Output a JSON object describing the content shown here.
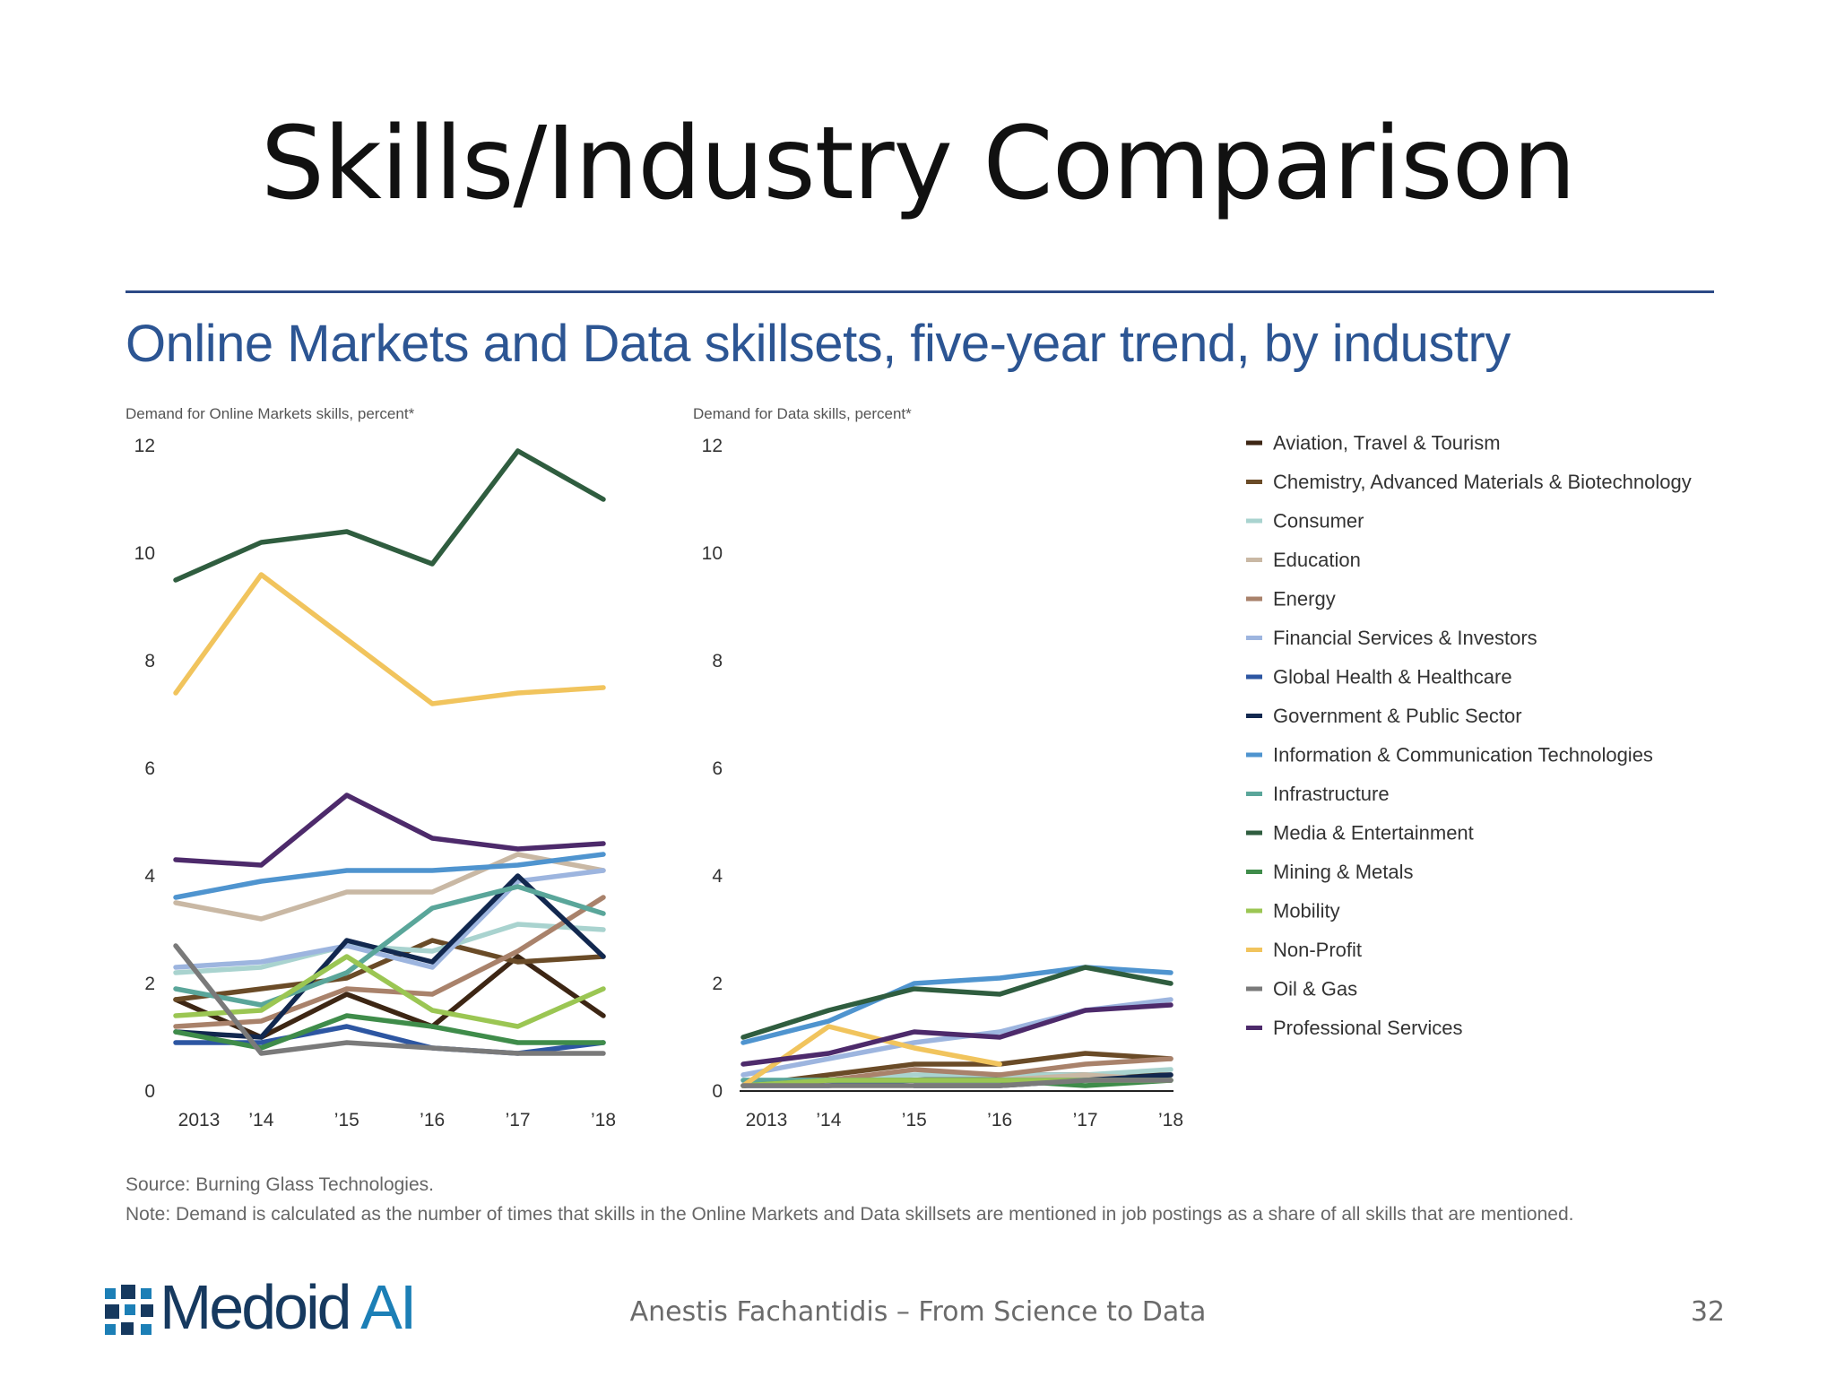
{
  "slide": {
    "title": "Skills/Industry Comparison",
    "footer": "Anestis Fachantidis – From Science to Data",
    "page_number": "32",
    "logo": "Medoid AI",
    "logo_parts": {
      "main": "Medoid ",
      "accent": "AI"
    }
  },
  "figure": {
    "title": "Online Markets and Data skillsets, five-year trend, by industry",
    "source": "Source: Burning Glass Technologies.",
    "note": "Note: Demand is calculated as the number of times that skills in the Online Markets and Data skillsets are mentioned in job postings as a share of all skills that are mentioned."
  },
  "chart_data": [
    {
      "type": "line",
      "title": "",
      "ylabel": "Demand for Online Markets skills, percent*",
      "xlabel": "",
      "x": [
        "2013",
        "’14",
        "’15",
        "’16",
        "’17",
        "’18"
      ],
      "ylim": [
        0,
        12
      ],
      "yticks": [
        0,
        2,
        4,
        6,
        8,
        10,
        12
      ],
      "grid": false,
      "series": [
        {
          "name": "Aviation, Travel & Tourism",
          "color": "#3d2614",
          "values": [
            1.7,
            1.0,
            1.8,
            1.2,
            2.5,
            1.4
          ]
        },
        {
          "name": "Chemistry, Advanced Materials & Biotechnology",
          "color": "#6a4b27",
          "values": [
            1.7,
            1.9,
            2.1,
            2.8,
            2.4,
            2.5
          ]
        },
        {
          "name": "Consumer",
          "color": "#a9d3cf",
          "values": [
            2.2,
            2.3,
            2.7,
            2.6,
            3.1,
            3.0
          ]
        },
        {
          "name": "Education",
          "color": "#c9b8a4",
          "values": [
            3.5,
            3.2,
            3.7,
            3.7,
            4.4,
            4.1
          ]
        },
        {
          "name": "Energy",
          "color": "#a9826b",
          "values": [
            1.2,
            1.3,
            1.9,
            1.8,
            2.6,
            3.6
          ]
        },
        {
          "name": "Financial Services & Investors",
          "color": "#9db5df",
          "values": [
            2.3,
            2.4,
            2.7,
            2.3,
            3.9,
            4.1
          ]
        },
        {
          "name": "Global Health & Healthcare",
          "color": "#2d56a2",
          "values": [
            0.9,
            0.9,
            1.2,
            0.8,
            0.7,
            0.9
          ]
        },
        {
          "name": "Government & Public Sector",
          "color": "#12284f",
          "values": [
            1.1,
            1.0,
            2.8,
            2.4,
            4.0,
            2.5
          ]
        },
        {
          "name": "Information & Communication Technologies",
          "color": "#4f94cf",
          "values": [
            3.6,
            3.9,
            4.1,
            4.1,
            4.2,
            4.4
          ]
        },
        {
          "name": "Infrastructure",
          "color": "#5aa69a",
          "values": [
            1.9,
            1.6,
            2.2,
            3.4,
            3.8,
            3.3
          ]
        },
        {
          "name": "Media & Entertainment",
          "color": "#2f5d3f",
          "values": [
            9.5,
            10.2,
            10.4,
            9.8,
            11.9,
            11.0
          ]
        },
        {
          "name": "Mining & Metals",
          "color": "#3f8c4a",
          "values": [
            1.1,
            0.8,
            1.4,
            1.2,
            0.9,
            0.9
          ]
        },
        {
          "name": "Mobility",
          "color": "#9bc653",
          "values": [
            1.4,
            1.5,
            2.5,
            1.5,
            1.2,
            1.9
          ]
        },
        {
          "name": "Non-Profit",
          "color": "#f1c45d",
          "values": [
            7.4,
            9.6,
            8.4,
            7.2,
            7.4,
            7.5
          ]
        },
        {
          "name": "Oil & Gas",
          "color": "#7a7a7a",
          "values": [
            2.7,
            0.7,
            0.9,
            0.8,
            0.7,
            0.7
          ]
        },
        {
          "name": "Professional Services",
          "color": "#4d2a6b",
          "values": [
            4.3,
            4.2,
            5.5,
            4.7,
            4.5,
            4.6
          ]
        }
      ]
    },
    {
      "type": "line",
      "title": "",
      "ylabel": "Demand for Data skills, percent*",
      "xlabel": "",
      "x": [
        "2013",
        "’14",
        "’15",
        "’16",
        "’17",
        "’18"
      ],
      "ylim": [
        0,
        12
      ],
      "yticks": [
        0,
        2,
        4,
        6,
        8,
        10,
        12
      ],
      "grid": false,
      "series": [
        {
          "name": "Aviation, Travel & Tourism",
          "color": "#3d2614",
          "values": [
            0.1,
            0.2,
            0.2,
            0.3,
            0.3,
            0.3
          ]
        },
        {
          "name": "Chemistry, Advanced Materials & Biotechnology",
          "color": "#6a4b27",
          "values": [
            0.1,
            0.3,
            0.5,
            0.5,
            0.7,
            0.6
          ]
        },
        {
          "name": "Consumer",
          "color": "#a9d3cf",
          "values": [
            0.2,
            0.2,
            0.3,
            0.3,
            0.3,
            0.4
          ]
        },
        {
          "name": "Education",
          "color": "#c9b8a4",
          "values": [
            0.1,
            0.2,
            0.2,
            0.2,
            0.3,
            0.2
          ]
        },
        {
          "name": "Energy",
          "color": "#a9826b",
          "values": [
            0.1,
            0.2,
            0.4,
            0.3,
            0.5,
            0.6
          ]
        },
        {
          "name": "Financial Services & Investors",
          "color": "#9db5df",
          "values": [
            0.3,
            0.6,
            0.9,
            1.1,
            1.5,
            1.7
          ]
        },
        {
          "name": "Global Health & Healthcare",
          "color": "#2d56a2",
          "values": [
            0.1,
            0.1,
            0.2,
            0.2,
            0.2,
            0.2
          ]
        },
        {
          "name": "Government & Public Sector",
          "color": "#12284f",
          "values": [
            null,
            null,
            0.1,
            0.1,
            0.2,
            0.3
          ]
        },
        {
          "name": "Information & Communication Technologies",
          "color": "#4f94cf",
          "values": [
            0.9,
            1.3,
            2.0,
            2.1,
            2.3,
            2.2
          ]
        },
        {
          "name": "Infrastructure",
          "color": "#5aa69a",
          "values": [
            0.2,
            0.2,
            0.2,
            0.2,
            0.2,
            0.2
          ]
        },
        {
          "name": "Media & Entertainment",
          "color": "#2f5d3f",
          "values": [
            1.0,
            1.5,
            1.9,
            1.8,
            2.3,
            2.0
          ]
        },
        {
          "name": "Mining & Metals",
          "color": "#3f8c4a",
          "values": [
            0.1,
            0.2,
            0.2,
            0.2,
            0.1,
            0.2
          ]
        },
        {
          "name": "Mobility",
          "color": "#9bc653",
          "values": [
            0.1,
            0.2,
            0.2,
            0.2,
            0.2,
            0.2
          ]
        },
        {
          "name": "Non-Profit",
          "color": "#f1c45d",
          "values": [
            0.1,
            1.2,
            0.8,
            0.5,
            null,
            null
          ]
        },
        {
          "name": "Oil & Gas",
          "color": "#7a7a7a",
          "values": [
            0.1,
            0.1,
            0.1,
            0.1,
            0.2,
            0.2
          ]
        },
        {
          "name": "Professional Services",
          "color": "#4d2a6b",
          "values": [
            0.5,
            0.7,
            1.1,
            1.0,
            1.5,
            1.6
          ]
        }
      ]
    }
  ],
  "legend": {
    "placement": "right",
    "items": [
      {
        "label": "Aviation, Travel & Tourism",
        "color": "#3d2614"
      },
      {
        "label": "Chemistry, Advanced Materials & Biotechnology",
        "color": "#6a4b27"
      },
      {
        "label": "Consumer",
        "color": "#a9d3cf"
      },
      {
        "label": "Education",
        "color": "#c9b8a4"
      },
      {
        "label": "Energy",
        "color": "#a9826b"
      },
      {
        "label": "Financial Services & Investors",
        "color": "#9db5df"
      },
      {
        "label": "Global Health & Healthcare",
        "color": "#2d56a2"
      },
      {
        "label": "Government & Public Sector",
        "color": "#12284f"
      },
      {
        "label": "Information & Communication Technologies",
        "color": "#4f94cf"
      },
      {
        "label": "Infrastructure",
        "color": "#5aa69a"
      },
      {
        "label": "Media & Entertainment",
        "color": "#2f5d3f"
      },
      {
        "label": "Mining & Metals",
        "color": "#3f8c4a"
      },
      {
        "label": "Mobility",
        "color": "#9bc653"
      },
      {
        "label": "Non-Profit",
        "color": "#f1c45d"
      },
      {
        "label": "Oil & Gas",
        "color": "#7a7a7a"
      },
      {
        "label": "Professional Services",
        "color": "#4d2a6b"
      }
    ]
  }
}
